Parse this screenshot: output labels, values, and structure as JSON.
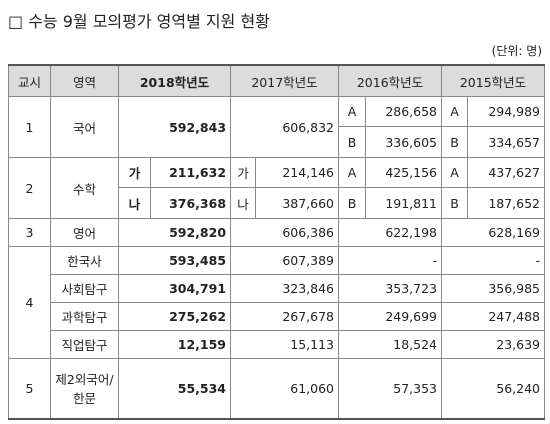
{
  "header": {
    "title": "□ 수능 9월 모의평가 영역별 지원 현황",
    "unit": "(단위: 명)"
  },
  "table": {
    "columns": [
      "교시",
      "영역",
      "2018학년도",
      "2017학년도",
      "2016학년도",
      "2015학년도"
    ],
    "groups": [
      {
        "period": "1",
        "items": [
          {
            "subject": "국어",
            "years": [
              {
                "value": "592,843"
              },
              {
                "value": "606,832"
              },
              {
                "parts": [
                  {
                    "type": "A",
                    "value": "286,658"
                  },
                  {
                    "type": "B",
                    "value": "336,605"
                  }
                ]
              },
              {
                "parts": [
                  {
                    "type": "A",
                    "value": "294,989"
                  },
                  {
                    "type": "B",
                    "value": "334,657"
                  }
                ]
              }
            ]
          }
        ]
      },
      {
        "period": "2",
        "items": [
          {
            "subject": "수학",
            "years": [
              {
                "parts": [
                  {
                    "type": "가",
                    "value": "211,632"
                  },
                  {
                    "type": "나",
                    "value": "376,368"
                  }
                ]
              },
              {
                "parts": [
                  {
                    "type": "가",
                    "value": "214,146"
                  },
                  {
                    "type": "나",
                    "value": "387,660"
                  }
                ]
              },
              {
                "parts": [
                  {
                    "type": "A",
                    "value": "425,156"
                  },
                  {
                    "type": "B",
                    "value": "191,811"
                  }
                ]
              },
              {
                "parts": [
                  {
                    "type": "A",
                    "value": "437,627"
                  },
                  {
                    "type": "B",
                    "value": "187,652"
                  }
                ]
              }
            ]
          }
        ]
      },
      {
        "period": "3",
        "items": [
          {
            "subject": "영어",
            "years": [
              {
                "value": "592,820"
              },
              {
                "value": "606,386"
              },
              {
                "value": "622,198"
              },
              {
                "value": "628,169"
              }
            ]
          }
        ]
      },
      {
        "period": "4",
        "items": [
          {
            "subject": "한국사",
            "years": [
              {
                "value": "593,485"
              },
              {
                "value": "607,389"
              },
              {
                "value": "-"
              },
              {
                "value": "-"
              }
            ]
          },
          {
            "subject": "사회탐구",
            "years": [
              {
                "value": "304,791"
              },
              {
                "value": "323,846"
              },
              {
                "value": "353,723"
              },
              {
                "value": "356,985"
              }
            ]
          },
          {
            "subject": "과학탐구",
            "years": [
              {
                "value": "275,262"
              },
              {
                "value": "267,678"
              },
              {
                "value": "249,699"
              },
              {
                "value": "247,488"
              }
            ]
          },
          {
            "subject": "직업탐구",
            "years": [
              {
                "value": "12,159"
              },
              {
                "value": "15,113"
              },
              {
                "value": "18,524"
              },
              {
                "value": "23,639"
              }
            ]
          }
        ]
      },
      {
        "period": "5",
        "items": [
          {
            "subject": "제2외국어/\n한문",
            "years": [
              {
                "value": "55,534"
              },
              {
                "value": "61,060"
              },
              {
                "value": "57,353"
              },
              {
                "value": "56,240"
              }
            ]
          }
        ]
      }
    ]
  }
}
